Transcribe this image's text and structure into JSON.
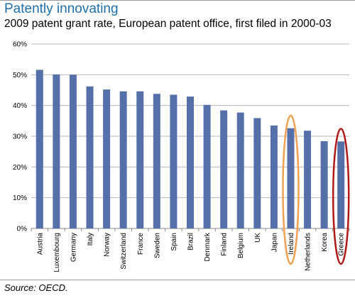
{
  "chart_data": {
    "type": "bar",
    "title": "Patently innovating",
    "subtitle": "2009 patent grant rate, European patent office, first filed in 2000-03",
    "source": "Source: OECD.",
    "categories": [
      "Austria",
      "Luxembourg",
      "Germany",
      "Italy",
      "Norway",
      "Switzerland",
      "France",
      "Sweden",
      "Spain",
      "Brazil",
      "Denmark",
      "Finland",
      "Belgium",
      "UK",
      "Japan",
      "Ireland",
      "Netherlands",
      "Korea",
      "Greece"
    ],
    "values": [
      51.6,
      50.1,
      50.0,
      46.2,
      45.2,
      44.6,
      44.6,
      43.8,
      43.5,
      42.9,
      40.2,
      38.4,
      37.7,
      35.9,
      33.5,
      32.6,
      31.8,
      28.4,
      28.3
    ],
    "ylim": [
      0,
      60
    ],
    "yticks": [
      0,
      10,
      20,
      30,
      40,
      50,
      60
    ],
    "ytick_labels": [
      "0%",
      "10%",
      "20%",
      "30%",
      "40%",
      "50%",
      "60%"
    ],
    "grid": true,
    "colors": {
      "bar": "#5570a8",
      "ireland_highlight": "#f0a050",
      "greece_highlight": "#b01818",
      "title": "#1f6fa8"
    },
    "highlighted": [
      {
        "category": "Ireland",
        "color": "#f0a050"
      },
      {
        "category": "Greece",
        "color": "#b01818"
      }
    ]
  }
}
